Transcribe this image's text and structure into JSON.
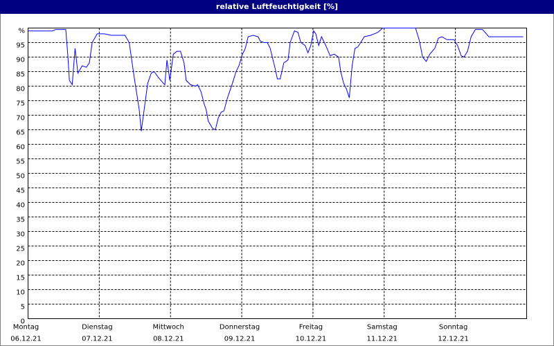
{
  "chart_data": {
    "type": "line",
    "title": "relative Luftfeuchtigkeit [%]",
    "xlim": [
      0,
      7
    ],
    "xticks": [
      {
        "value": 0,
        "label": "Montag"
      },
      {
        "value": 1,
        "label": "Dienstag"
      },
      {
        "value": 2,
        "label": "Mittwoch"
      },
      {
        "value": 3,
        "label": "Donnerstag"
      },
      {
        "value": 4,
        "label": "Freitag"
      },
      {
        "value": 5,
        "label": "Samstag"
      },
      {
        "value": 6,
        "label": "Sonntag"
      }
    ],
    "xtick_dates": [
      "06.12.21",
      "07.12.21",
      "08.12.21",
      "09.12.21",
      "10.12.21",
      "11.12.21",
      "12.12.21"
    ],
    "ylim": [
      0,
      100
    ],
    "yticks": [
      0,
      5,
      10,
      15,
      20,
      25,
      30,
      35,
      40,
      45,
      50,
      55,
      60,
      65,
      70,
      75,
      80,
      85,
      90,
      95,
      {
        "value": 100,
        "label": "%"
      }
    ],
    "grid": true,
    "x": [
      0,
      0.34,
      0.39,
      0.53,
      0.56,
      0.58,
      0.62,
      0.66,
      0.7,
      0.76,
      0.82,
      0.86,
      0.9,
      0.97,
      1.07,
      1.17,
      1.36,
      1.42,
      1.49,
      1.56,
      1.59,
      1.63,
      1.68,
      1.73,
      1.77,
      1.83,
      1.9,
      1.92,
      1.95,
      1.99,
      2.04,
      2.09,
      2.14,
      2.19,
      2.22,
      2.28,
      2.35,
      2.38,
      2.43,
      2.47,
      2.5,
      2.53,
      2.59,
      2.63,
      2.67,
      2.71,
      2.75,
      2.8,
      2.87,
      2.92,
      2.96,
      3.01,
      3.05,
      3.09,
      3.16,
      3.23,
      3.26,
      3.31,
      3.36,
      3.4,
      3.47,
      3.5,
      3.54,
      3.59,
      3.65,
      3.68,
      3.74,
      3.79,
      3.83,
      3.89,
      3.93,
      3.97,
      4.01,
      4.04,
      4.08,
      4.12,
      4.18,
      4.24,
      4.3,
      4.36,
      4.39,
      4.43,
      4.47,
      4.51,
      4.55,
      4.59,
      4.63,
      4.67,
      4.72,
      4.81,
      4.91,
      4.98,
      5.44,
      5.49,
      5.54,
      5.59,
      5.64,
      5.71,
      5.76,
      5.81,
      5.88,
      5.98,
      6.03,
      6.08,
      6.12,
      6.17,
      6.22,
      6.28,
      6.38,
      6.47,
      6.61,
      6.95
    ],
    "series": [
      {
        "color": "#0000ff",
        "values": [
          99,
          99,
          99.5,
          99.5,
          90,
          82,
          80.5,
          93,
          84.5,
          87,
          86.5,
          88,
          95,
          98,
          98,
          97.5,
          97.5,
          95,
          83,
          72,
          64.5,
          72,
          81,
          84.5,
          85,
          83,
          81,
          80.5,
          89,
          82,
          91,
          92,
          92,
          88,
          82,
          80.5,
          80,
          80.5,
          78,
          74,
          72,
          68,
          65.5,
          65,
          69,
          71,
          71.5,
          76,
          81,
          85,
          87,
          91,
          93,
          97,
          97.5,
          97,
          95.5,
          95,
          95,
          93,
          86,
          82.5,
          82.5,
          88,
          89,
          95,
          99,
          98.5,
          95,
          94,
          91.5,
          94,
          99,
          98,
          94,
          97,
          94,
          90.5,
          91,
          90,
          85,
          81,
          79,
          76,
          87,
          93,
          93.5,
          95,
          97,
          97.5,
          98.5,
          100,
          100,
          96,
          90,
          88.5,
          91,
          93,
          96.5,
          97,
          96,
          96,
          94,
          90.5,
          90,
          92,
          97,
          99.5,
          99.5,
          97,
          97,
          97
        ]
      }
    ]
  }
}
